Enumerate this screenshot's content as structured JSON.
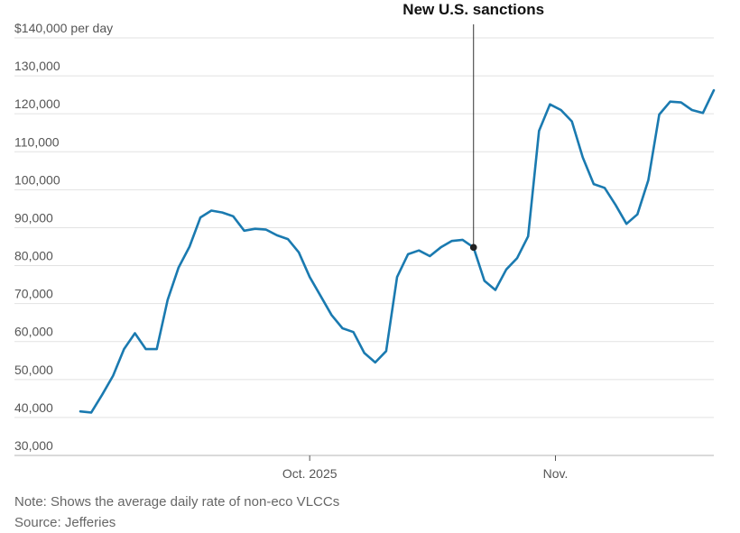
{
  "chart_data": {
    "type": "line",
    "title": "",
    "ylabel": "$140,000 per day",
    "ylim": [
      30000,
      140000
    ],
    "yticks": [
      {
        "value": 140000,
        "label": "$140,000"
      },
      {
        "value": 130000,
        "label": "130,000"
      },
      {
        "value": 120000,
        "label": "120,000"
      },
      {
        "value": 110000,
        "label": "110,000"
      },
      {
        "value": 100000,
        "label": "100,000"
      },
      {
        "value": 90000,
        "label": "90,000"
      },
      {
        "value": 80000,
        "label": "80,000"
      },
      {
        "value": 70000,
        "label": "70,000"
      },
      {
        "value": 60000,
        "label": "60,000"
      },
      {
        "value": 50000,
        "label": "50,000"
      },
      {
        "value": 40000,
        "label": "40,000"
      },
      {
        "value": 30000,
        "label": "30,000"
      }
    ],
    "ylabel_unit": "per day",
    "xlim": [
      0,
      58
    ],
    "xticks": [
      {
        "value": 21,
        "label": "Oct. 2025"
      },
      {
        "value": 43.5,
        "label": "Nov."
      }
    ],
    "series": [
      {
        "name": "Average daily rate of non-eco VLCCs",
        "color": "#1a7ab0",
        "values": [
          41600,
          41300,
          46000,
          51000,
          58000,
          62200,
          58000,
          58000,
          71000,
          79500,
          85000,
          92700,
          94500,
          94000,
          93000,
          89200,
          89700,
          89500,
          88000,
          87000,
          83500,
          77000,
          72000,
          67000,
          63500,
          62500,
          57000,
          54500,
          57500,
          77000,
          83000,
          84000,
          82500,
          84800,
          86500,
          86800,
          84800,
          76000,
          73600,
          79000,
          82000,
          87700,
          115500,
          122500,
          121000,
          118000,
          108500,
          101500,
          100500,
          96000,
          91000,
          93500,
          102500,
          119800,
          123200,
          123000,
          121000,
          120200,
          126200
        ]
      }
    ],
    "annotation": {
      "label": "New U.S. sanctions",
      "x_index": 36,
      "value": 84800
    },
    "grid": true
  },
  "footer": {
    "note": "Note: Shows the average daily rate of non-eco VLCCs",
    "source": "Source: Jefferies"
  }
}
